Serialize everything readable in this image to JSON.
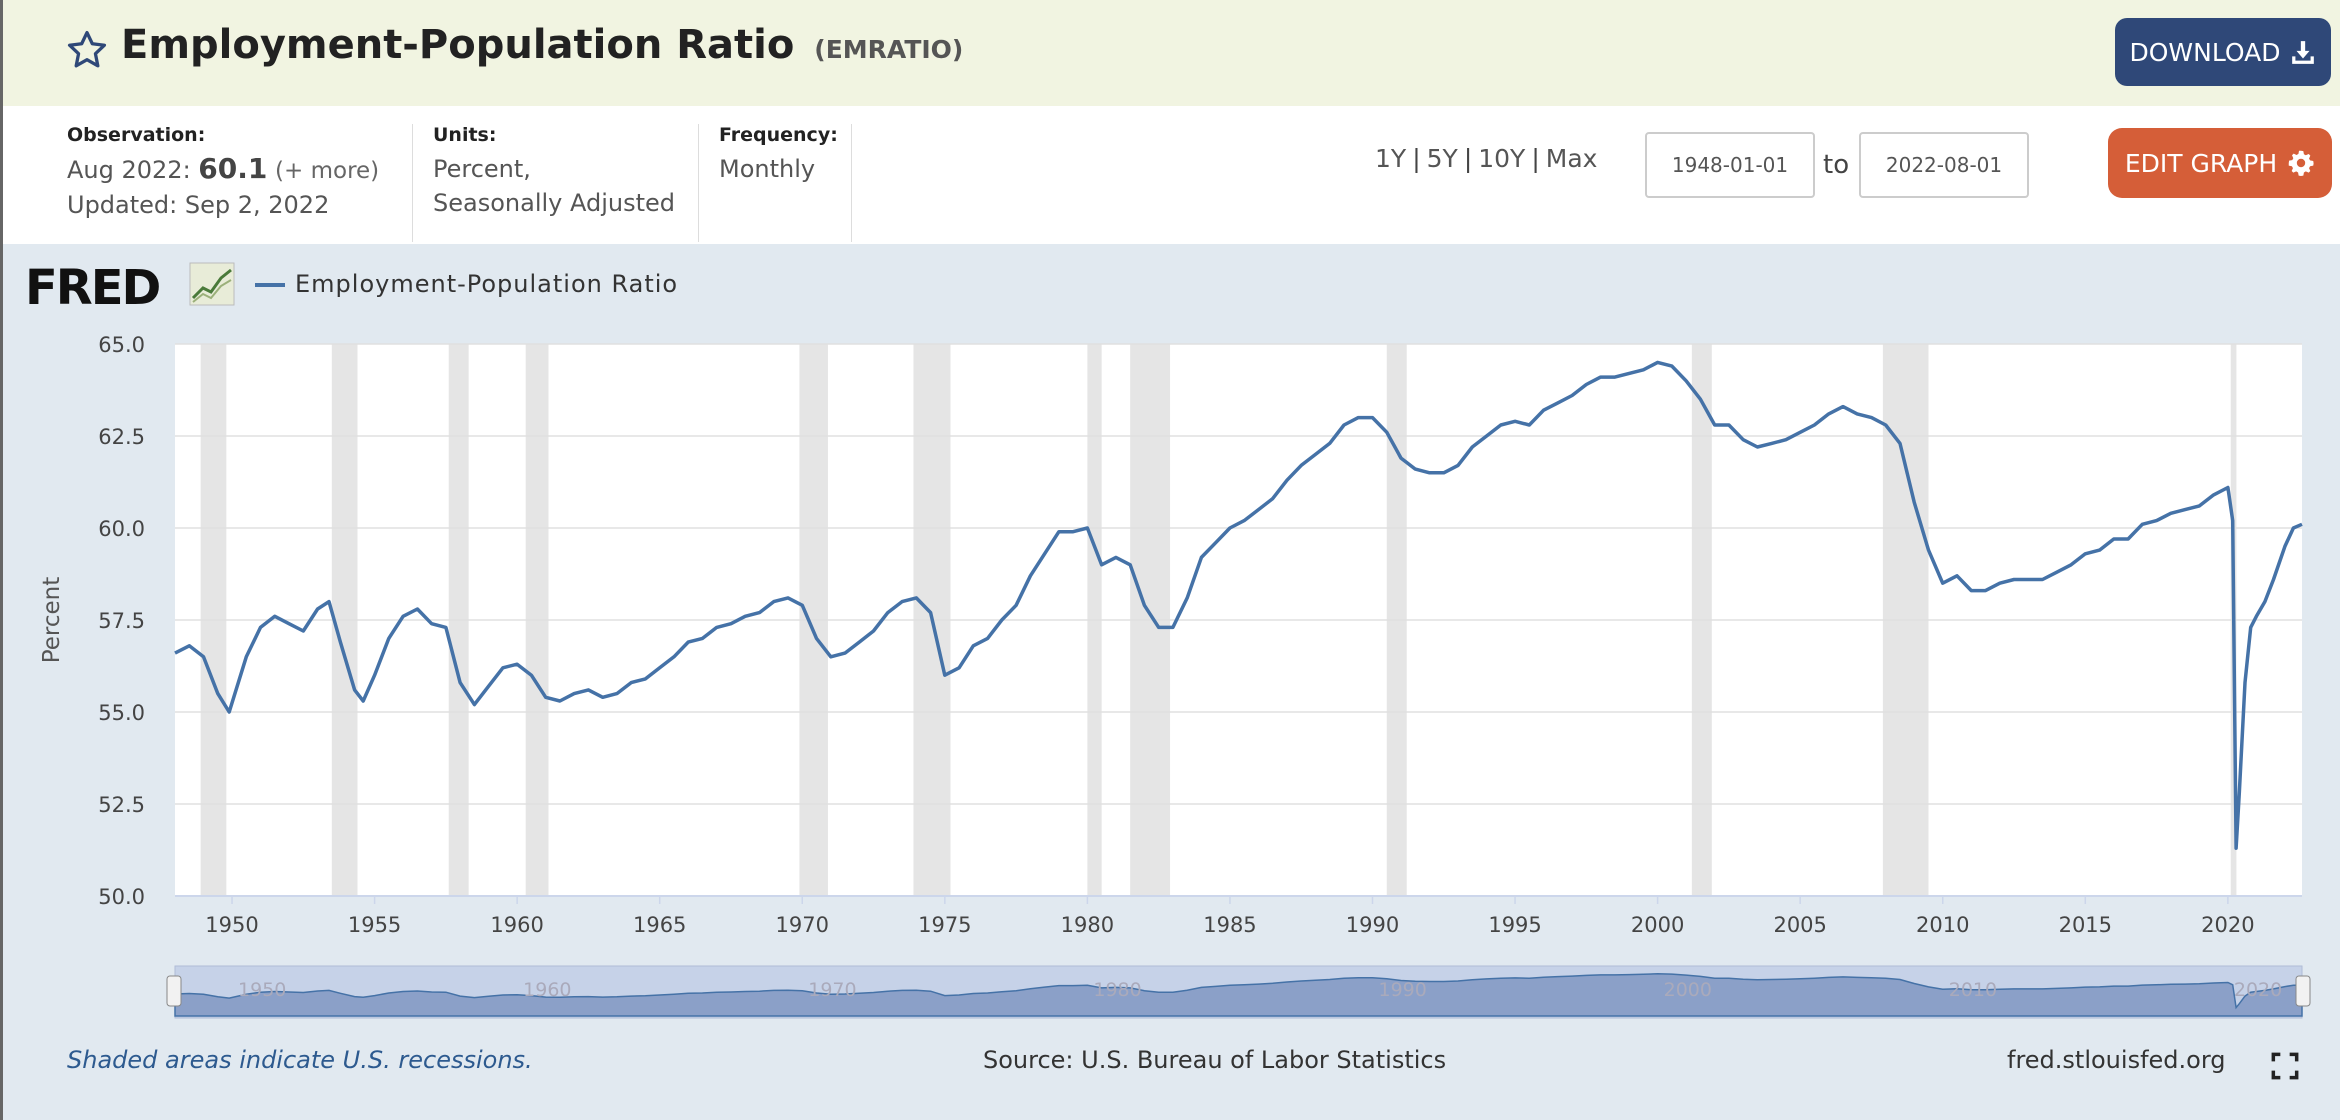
{
  "header": {
    "title": "Employment-Population Ratio",
    "series_id": "(EMRATIO)",
    "download_label": "DOWNLOAD"
  },
  "meta": {
    "observation_label": "Observation:",
    "observation_date": "Aug 2022:",
    "observation_value": "60.1",
    "observation_more": "(+ more)",
    "updated": "Updated: Sep 2, 2022",
    "units_label": "Units:",
    "units_line1": "Percent,",
    "units_line2": "Seasonally Adjusted",
    "frequency_label": "Frequency:",
    "frequency_value": "Monthly"
  },
  "controls": {
    "range_1y": "1Y",
    "range_5y": "5Y",
    "range_10y": "10Y",
    "range_max": "Max",
    "date_from": "1948-01-01",
    "to_label": "to",
    "date_to": "2022-08-01",
    "edit_label": "EDIT GRAPH"
  },
  "brand": {
    "logo": "FRED",
    "icon": "chart-icon"
  },
  "legend": {
    "series_name": "Employment-Population Ratio"
  },
  "colors": {
    "series": "#4572a7",
    "recession": "#e5e5e5",
    "navigator": "#8ba0c8"
  },
  "footer": {
    "note": "Shaded areas indicate U.S. recessions.",
    "source": "Source: U.S. Bureau of Labor Statistics",
    "site": "fred.stlouisfed.org"
  },
  "chart_data": {
    "type": "line",
    "ylabel": "Percent",
    "ylim": [
      50.0,
      65.0
    ],
    "yticks": [
      "50.0",
      "52.5",
      "55.0",
      "57.5",
      "60.0",
      "62.5",
      "65.0"
    ],
    "xlim": [
      1948.0,
      2022.6
    ],
    "xticks": [
      "1950",
      "1955",
      "1960",
      "1965",
      "1970",
      "1975",
      "1980",
      "1985",
      "1990",
      "1995",
      "2000",
      "2005",
      "2010",
      "2015",
      "2020"
    ],
    "grid": true,
    "recessions": [
      [
        1948.9,
        1949.8
      ],
      [
        1953.5,
        1954.4
      ],
      [
        1957.6,
        1958.3
      ],
      [
        1960.3,
        1961.1
      ],
      [
        1969.9,
        1970.9
      ],
      [
        1973.9,
        1975.2
      ],
      [
        1980.0,
        1980.5
      ],
      [
        1981.5,
        1982.9
      ],
      [
        1990.5,
        1991.2
      ],
      [
        2001.2,
        2001.9
      ],
      [
        2007.9,
        2009.5
      ],
      [
        2020.1,
        2020.3
      ]
    ],
    "series": [
      {
        "name": "Employment-Population Ratio",
        "x": [
          1948.0,
          1948.5,
          1949.0,
          1949.5,
          1949.9,
          1950.5,
          1951.0,
          1951.5,
          1952.0,
          1952.5,
          1953.0,
          1953.4,
          1953.8,
          1954.3,
          1954.6,
          1955.0,
          1955.5,
          1956.0,
          1956.5,
          1957.0,
          1957.5,
          1958.0,
          1958.5,
          1959.0,
          1959.5,
          1960.0,
          1960.5,
          1961.0,
          1961.5,
          1962.0,
          1962.5,
          1963.0,
          1963.5,
          1964.0,
          1964.5,
          1965.0,
          1965.5,
          1966.0,
          1966.5,
          1967.0,
          1967.5,
          1968.0,
          1968.5,
          1969.0,
          1969.5,
          1970.0,
          1970.5,
          1971.0,
          1971.5,
          1972.0,
          1972.5,
          1973.0,
          1973.5,
          1974.0,
          1974.5,
          1975.0,
          1975.5,
          1976.0,
          1976.5,
          1977.0,
          1977.5,
          1978.0,
          1978.5,
          1979.0,
          1979.5,
          1980.0,
          1980.5,
          1981.0,
          1981.5,
          1982.0,
          1982.5,
          1983.0,
          1983.5,
          1984.0,
          1984.5,
          1985.0,
          1985.5,
          1986.0,
          1986.5,
          1987.0,
          1987.5,
          1988.0,
          1988.5,
          1989.0,
          1989.5,
          1990.0,
          1990.5,
          1991.0,
          1991.5,
          1992.0,
          1992.5,
          1993.0,
          1993.5,
          1994.0,
          1994.5,
          1995.0,
          1995.5,
          1996.0,
          1996.5,
          1997.0,
          1997.5,
          1998.0,
          1998.5,
          1999.0,
          1999.5,
          2000.0,
          2000.5,
          2001.0,
          2001.5,
          2002.0,
          2002.5,
          2003.0,
          2003.5,
          2004.0,
          2004.5,
          2005.0,
          2005.5,
          2006.0,
          2006.5,
          2007.0,
          2007.5,
          2008.0,
          2008.5,
          2009.0,
          2009.5,
          2010.0,
          2010.5,
          2011.0,
          2011.5,
          2012.0,
          2012.5,
          2013.0,
          2013.5,
          2014.0,
          2014.5,
          2015.0,
          2015.5,
          2016.0,
          2016.5,
          2017.0,
          2017.5,
          2018.0,
          2018.5,
          2019.0,
          2019.5,
          2020.0,
          2020.17,
          2020.29,
          2020.4,
          2020.6,
          2020.8,
          2021.0,
          2021.3,
          2021.6,
          2022.0,
          2022.3,
          2022.6
        ],
        "values": [
          56.6,
          56.8,
          56.5,
          55.5,
          55.0,
          56.5,
          57.3,
          57.6,
          57.4,
          57.2,
          57.8,
          58.0,
          56.9,
          55.6,
          55.3,
          56.0,
          57.0,
          57.6,
          57.8,
          57.4,
          57.3,
          55.8,
          55.2,
          55.7,
          56.2,
          56.3,
          56.0,
          55.4,
          55.3,
          55.5,
          55.6,
          55.4,
          55.5,
          55.8,
          55.9,
          56.2,
          56.5,
          56.9,
          57.0,
          57.3,
          57.4,
          57.6,
          57.7,
          58.0,
          58.1,
          57.9,
          57.0,
          56.5,
          56.6,
          56.9,
          57.2,
          57.7,
          58.0,
          58.1,
          57.7,
          56.0,
          56.2,
          56.8,
          57.0,
          57.5,
          57.9,
          58.7,
          59.3,
          59.9,
          59.9,
          60.0,
          59.0,
          59.2,
          59.0,
          57.9,
          57.3,
          57.3,
          58.1,
          59.2,
          59.6,
          60.0,
          60.2,
          60.5,
          60.8,
          61.3,
          61.7,
          62.0,
          62.3,
          62.8,
          63.0,
          63.0,
          62.6,
          61.9,
          61.6,
          61.5,
          61.5,
          61.7,
          62.2,
          62.5,
          62.8,
          62.9,
          62.8,
          63.2,
          63.4,
          63.6,
          63.9,
          64.1,
          64.1,
          64.2,
          64.3,
          64.5,
          64.4,
          64.0,
          63.5,
          62.8,
          62.8,
          62.4,
          62.2,
          62.3,
          62.4,
          62.6,
          62.8,
          63.1,
          63.3,
          63.1,
          63.0,
          62.8,
          62.3,
          60.7,
          59.4,
          58.5,
          58.7,
          58.3,
          58.3,
          58.5,
          58.6,
          58.6,
          58.6,
          58.8,
          59.0,
          59.3,
          59.4,
          59.7,
          59.7,
          60.1,
          60.2,
          60.4,
          60.5,
          60.6,
          60.9,
          61.1,
          60.2,
          51.3,
          52.8,
          55.8,
          57.3,
          57.6,
          58.0,
          58.6,
          59.5,
          60.0,
          60.1
        ]
      }
    ]
  }
}
